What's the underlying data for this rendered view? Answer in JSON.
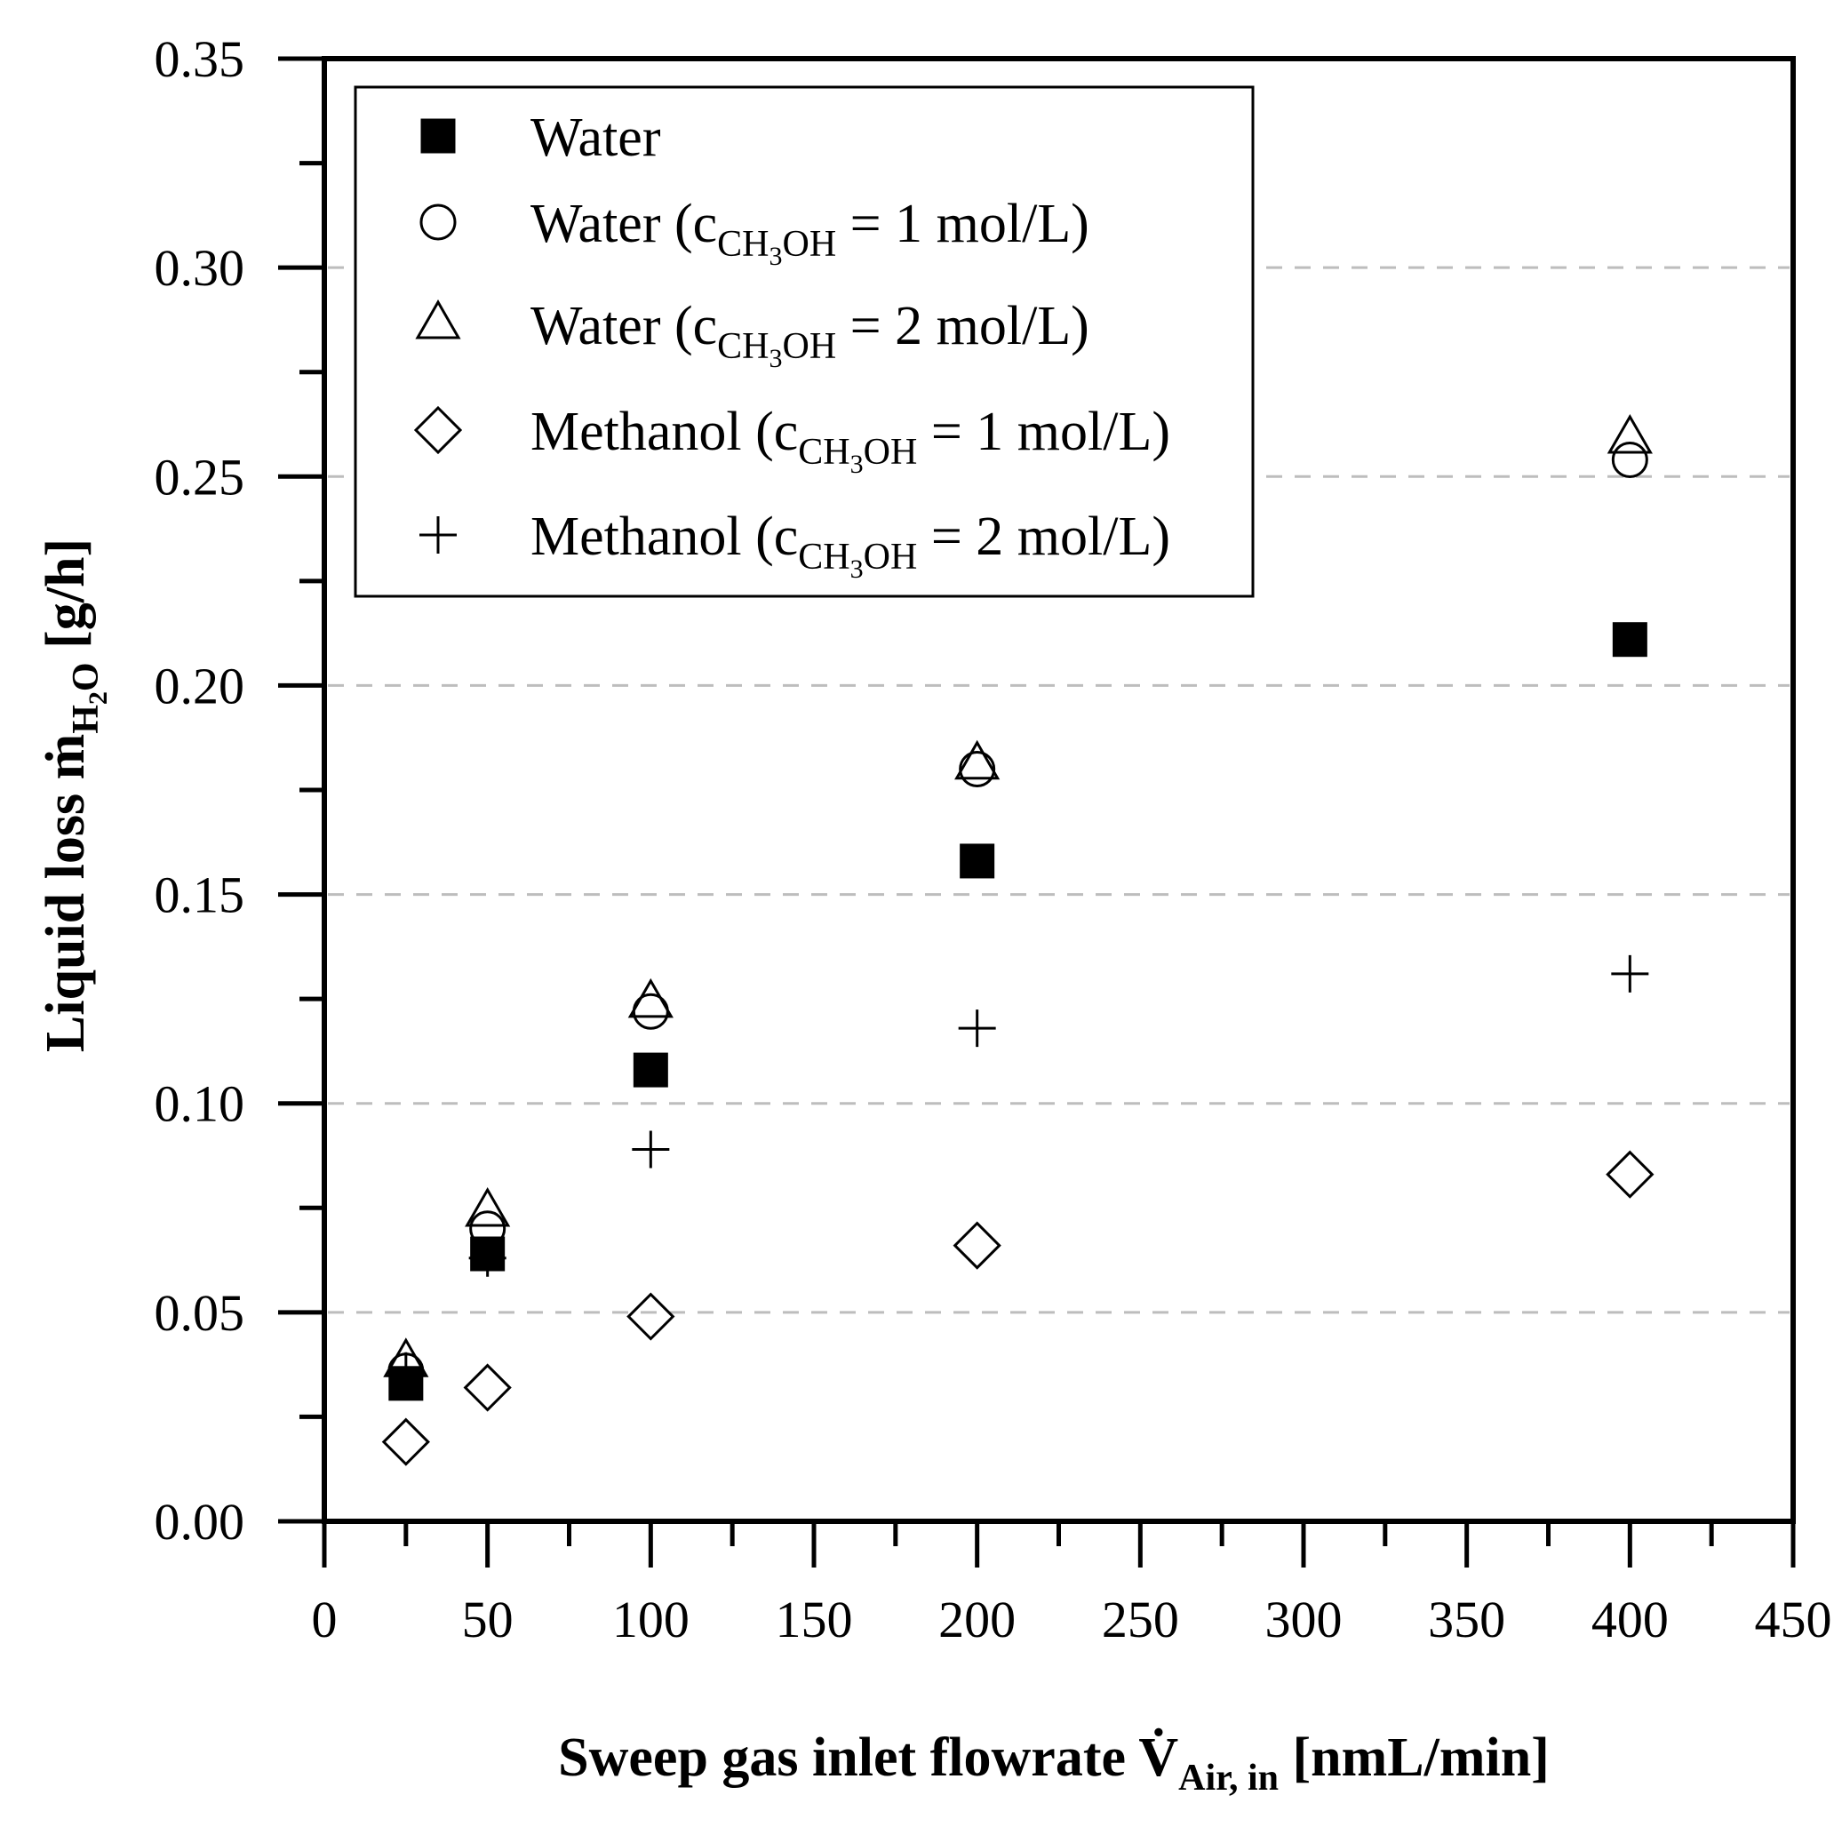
{
  "chart_data": {
    "type": "scatter",
    "xlabel": {
      "main": "Sweep gas inlet flowrate V",
      "dot": "̇",
      "sub": "Air, in",
      "unit": " [nmL/min]"
    },
    "ylabel": {
      "main": "Liquid loss m",
      "dot": "̇",
      "sub": "H",
      "sub2": "2",
      "sub3": "O",
      "unit": " [g/h]"
    },
    "xlim": [
      0,
      450
    ],
    "ylim": [
      0,
      0.35
    ],
    "xticks": [
      "0",
      "50",
      "100",
      "150",
      "200",
      "250",
      "300",
      "350",
      "400",
      "450"
    ],
    "yticks": [
      "0.00",
      "0.05",
      "0.10",
      "0.15",
      "0.20",
      "0.25",
      "0.30",
      "0.35"
    ],
    "grid": "horizontal dashed",
    "legend_position": "top-left",
    "series": [
      {
        "name": "Water",
        "name_parts": {
          "pre": "Water",
          "sub": "",
          "sub2": "",
          "sub3": "",
          "post": ""
        },
        "marker": "filled-square",
        "x": [
          25,
          50,
          100,
          200,
          400
        ],
        "y": [
          0.033,
          0.064,
          0.108,
          0.158,
          0.211
        ]
      },
      {
        "name": "Water (cCH3OH = 1 mol/L)",
        "name_parts": {
          "pre": "Water (c",
          "sub": "CH",
          "sub2": "3",
          "sub3": "OH",
          "post": " = 1 mol/L)"
        },
        "marker": "open-circle",
        "x": [
          25,
          50,
          100,
          200,
          400
        ],
        "y": [
          0.036,
          0.07,
          0.122,
          0.18,
          0.254
        ]
      },
      {
        "name": "Water (cCH3OH = 2 mol/L)",
        "name_parts": {
          "pre": "Water (c",
          "sub": "CH",
          "sub2": "3",
          "sub3": "OH",
          "post": " = 2 mol/L)"
        },
        "marker": "open-triangle",
        "x": [
          25,
          50,
          100,
          200,
          400
        ],
        "y": [
          0.038,
          0.074,
          0.124,
          0.181,
          0.259
        ]
      },
      {
        "name": "Methanol (cCH3OH = 1 mol/L)",
        "name_parts": {
          "pre": "Methanol (c",
          "sub": "CH",
          "sub2": "3",
          "sub3": "OH",
          "post": " = 1 mol/L)"
        },
        "marker": "open-diamond",
        "x": [
          25,
          50,
          100,
          200,
          400
        ],
        "y": [
          0.019,
          0.032,
          0.049,
          0.066,
          0.083
        ]
      },
      {
        "name": "Methanol (cCH3OH = 2 mol/L)",
        "name_parts": {
          "pre": "Methanol (c",
          "sub": "CH",
          "sub2": "3",
          "sub3": "OH",
          "post": " = 2 mol/L)"
        },
        "marker": "plus",
        "x": [
          25,
          50,
          100,
          200,
          400
        ],
        "y": [
          0.036,
          0.063,
          0.089,
          0.118,
          0.131
        ]
      }
    ]
  }
}
